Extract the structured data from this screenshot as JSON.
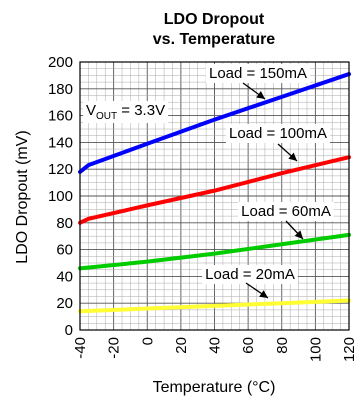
{
  "chart_data": {
    "type": "line",
    "title": "LDO Dropout",
    "subtitle": "vs. Temperature",
    "xlabel": "Temperature (°C)",
    "ylabel": "LDO Dropout (mV)",
    "xlim": [
      -40,
      120
    ],
    "ylim": [
      0,
      200
    ],
    "x_ticks": [
      -40,
      -20,
      0,
      20,
      40,
      60,
      80,
      100,
      120
    ],
    "y_ticks": [
      0,
      20,
      40,
      60,
      80,
      100,
      120,
      140,
      160,
      180,
      200
    ],
    "x_tick_labels": [
      "-40",
      "-20",
      "0",
      "20",
      "40",
      "60",
      "80",
      "100",
      "120"
    ],
    "y_tick_labels": [
      "0",
      "20",
      "40",
      "60",
      "80",
      "100",
      "120",
      "140",
      "160",
      "180",
      "200"
    ],
    "grid": true,
    "annotation": {
      "text_main": "V",
      "text_sub": "OUT",
      "text_rest": " = 3.3V"
    },
    "series": [
      {
        "name": "Load = 150mA",
        "color": "#0000ff",
        "x": [
          -40,
          -35,
          0,
          40,
          80,
          120
        ],
        "y": [
          118,
          123,
          139,
          157,
          174,
          191
        ]
      },
      {
        "name": "Load = 100mA",
        "color": "#ff0000",
        "x": [
          -40,
          -35,
          0,
          40,
          80,
          120
        ],
        "y": [
          80,
          83,
          93,
          104,
          117,
          129
        ]
      },
      {
        "name": "Load = 60mA",
        "color": "#00cc00",
        "x": [
          -40,
          0,
          40,
          80,
          120
        ],
        "y": [
          46,
          51,
          57,
          64,
          71
        ]
      },
      {
        "name": "Load = 20mA",
        "color": "#ffff33",
        "x": [
          -40,
          0,
          40,
          80,
          120
        ],
        "y": [
          14,
          16,
          18,
          20,
          22
        ]
      }
    ]
  }
}
